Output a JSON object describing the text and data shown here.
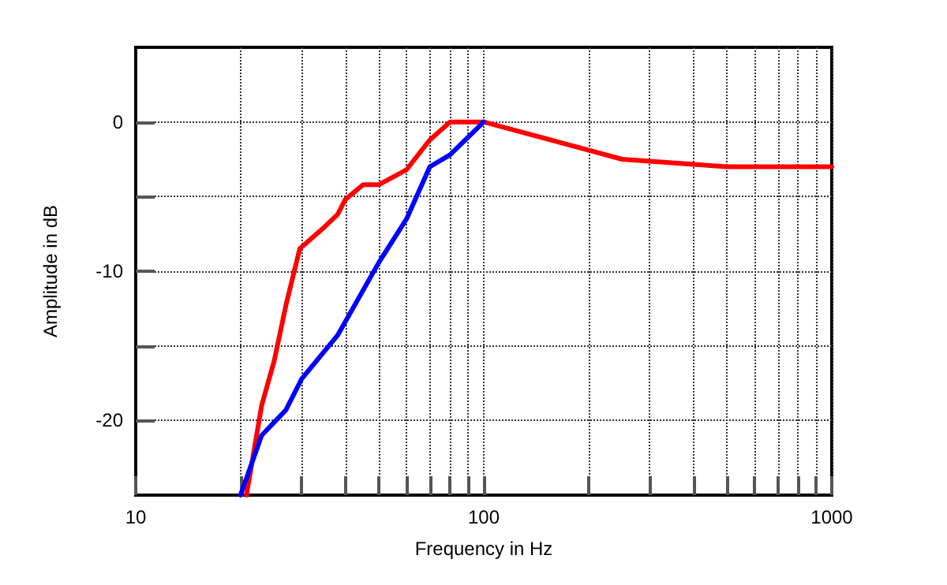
{
  "chart_data": {
    "type": "line",
    "xlabel": "Frequency in Hz",
    "ylabel": "Amplitude in dB",
    "log": "x",
    "grid": true,
    "marker": "none",
    "line_style": "solid",
    "xlim": [
      10,
      1000
    ],
    "xticks": [
      10,
      {
        "value": 20,
        "label": null
      },
      {
        "value": 30,
        "label": null
      },
      {
        "value": 40,
        "label": null
      },
      {
        "value": 50,
        "label": null
      },
      {
        "value": 60,
        "label": null
      },
      {
        "value": 70,
        "label": null
      },
      {
        "value": 80,
        "label": null
      },
      {
        "value": 90,
        "label": null
      },
      100,
      {
        "value": 200,
        "label": null
      },
      {
        "value": 300,
        "label": null
      },
      {
        "value": 400,
        "label": null
      },
      {
        "value": 500,
        "label": null
      },
      {
        "value": 600,
        "label": null
      },
      {
        "value": 700,
        "label": null
      },
      {
        "value": 800,
        "label": null
      },
      {
        "value": 900,
        "label": null
      },
      1000
    ],
    "ylim": [
      -25,
      5
    ],
    "yticks": [
      -20,
      {
        "value": -15,
        "label": null
      },
      -10,
      {
        "value": -5,
        "label": null
      },
      0
    ],
    "series": [
      {
        "color": "#ff0000",
        "x": [
          20.8,
          23,
          25,
          27,
          29.6,
          35,
          38,
          40,
          45,
          50,
          60,
          70,
          80,
          100,
          250,
          500,
          1000
        ],
        "values": [
          -25,
          -19,
          -16,
          -12.3,
          -8.5,
          -7,
          -6.2,
          -5.2,
          -4.2,
          -4.2,
          -3.2,
          -1.2,
          0,
          0,
          -2.5,
          -3,
          -3
        ]
      },
      {
        "color": "#0000ff",
        "x": [
          20,
          23,
          27,
          30,
          38,
          50,
          60,
          70,
          80,
          100
        ],
        "values": [
          -25,
          -21,
          -19.3,
          -17.2,
          -14.3,
          -9.4,
          -6.5,
          -3,
          -2.2,
          0
        ]
      }
    ]
  }
}
